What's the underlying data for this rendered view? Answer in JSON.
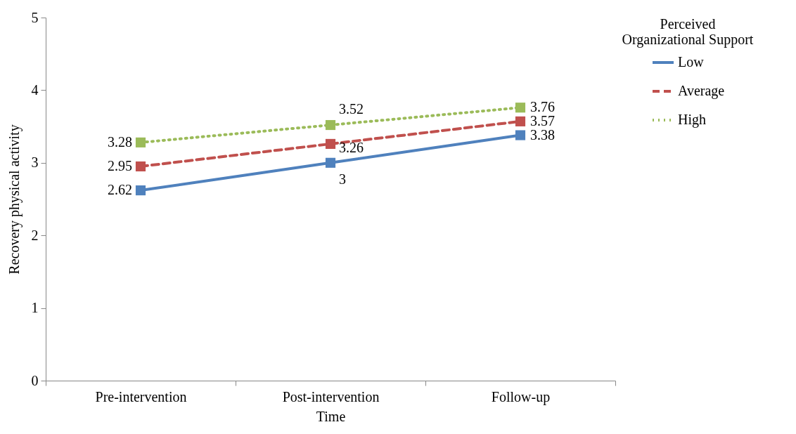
{
  "chart_data": {
    "type": "line",
    "xlabel": "Time",
    "ylabel": "Recovery physical activity",
    "legend_title": "Perceived Organizational Support",
    "categories": [
      "Pre-intervention",
      "Post-intervention",
      "Follow-up"
    ],
    "series": [
      {
        "name": "Low",
        "color": "#4f81bd",
        "line_style": "solid",
        "values": [
          2.62,
          3,
          3.38
        ]
      },
      {
        "name": "Average",
        "color": "#c0504d",
        "line_style": "dashed",
        "values": [
          2.95,
          3.26,
          3.57
        ]
      },
      {
        "name": "High",
        "color": "#9bbb59",
        "line_style": "dotted",
        "values": [
          3.28,
          3.52,
          3.76
        ]
      }
    ],
    "ylim": [
      0,
      5
    ],
    "yticks": [
      0,
      1,
      2,
      3,
      4,
      5
    ],
    "grid": false,
    "legend": "right",
    "marker": "square",
    "data_labels": true
  }
}
